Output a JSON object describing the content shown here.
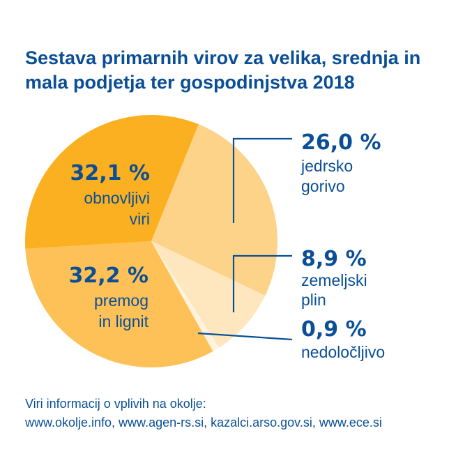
{
  "title_lines": [
    "Sestava primarnih virov za velika, srednja in",
    "mala podjetja ter gospodinjstva 2018"
  ],
  "chart_data": {
    "type": "pie",
    "title": "Sestava primarnih virov za velika, srednja in mala podjetja ter gospodinjstva 2018",
    "unit": "%",
    "slices": [
      {
        "name_lines": [
          "jedrsko",
          "gorivo"
        ],
        "value": 26.0,
        "label": "26,0 %",
        "color": "#fdd38a"
      },
      {
        "name_lines": [
          "zemeljski",
          "plin"
        ],
        "value": 8.9,
        "label": "8,9 %",
        "color": "#fee7bf"
      },
      {
        "name_lines": [
          "nedoločljivo"
        ],
        "value": 0.9,
        "label": "0,9 %",
        "color": "#fff3dd"
      },
      {
        "name_lines": [
          "premog",
          "in lignit"
        ],
        "value": 32.2,
        "label": "32,2 %",
        "color": "#fdc158"
      },
      {
        "name_lines": [
          "obnovljivi",
          "viri"
        ],
        "value": 32.1,
        "label": "32,1 %",
        "color": "#fbb021"
      }
    ]
  },
  "source_lines": [
    "Viri informacij o vplivih na okolje:",
    "www.okolje.info, www.agen-rs.si, kazalci.arso.gov.si, www.ece.si"
  ],
  "colors": {
    "text": "#0a4f96",
    "line": "#0a4f96"
  }
}
